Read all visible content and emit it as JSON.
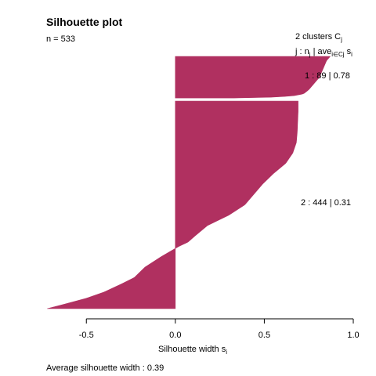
{
  "chart_data": {
    "type": "bar",
    "orientation": "horizontal",
    "title": "Silhouette plot",
    "n_label": "n = 533",
    "legend_header": {
      "line1_prefix": "2  clusters  C",
      "line1_sub": "j",
      "line2_a": "j :  n",
      "line2_a_sub": "j",
      "line2_b": " | ave",
      "line2_b_sub": "i∈Cj",
      "line2_c": "  s",
      "line2_c_sub": "i"
    },
    "clusters": [
      {
        "id": 1,
        "n": 89,
        "ave": 0.78,
        "label": "1 :   89  |  0.78",
        "profile": [
          [
            0,
            0.87
          ],
          [
            0.1,
            0.85
          ],
          [
            0.2,
            0.84
          ],
          [
            0.3,
            0.83
          ],
          [
            0.4,
            0.82
          ],
          [
            0.5,
            0.81
          ],
          [
            0.6,
            0.79
          ],
          [
            0.7,
            0.77
          ],
          [
            0.8,
            0.75
          ],
          [
            0.9,
            0.72
          ],
          [
            0.95,
            0.66
          ],
          [
            0.98,
            0.55
          ],
          [
            1.0,
            0.33
          ]
        ]
      },
      {
        "id": 2,
        "n": 444,
        "ave": 0.31,
        "label": "2 :   444  |  0.31",
        "profile": [
          [
            0,
            0.69
          ],
          [
            0.05,
            0.69
          ],
          [
            0.15,
            0.685
          ],
          [
            0.2,
            0.68
          ],
          [
            0.25,
            0.66
          ],
          [
            0.3,
            0.62
          ],
          [
            0.35,
            0.55
          ],
          [
            0.4,
            0.49
          ],
          [
            0.45,
            0.44
          ],
          [
            0.5,
            0.39
          ],
          [
            0.55,
            0.3
          ],
          [
            0.6,
            0.18
          ],
          [
            0.65,
            0.11
          ],
          [
            0.68,
            0.07
          ],
          [
            0.7,
            0.02
          ],
          [
            0.72,
            -0.02
          ],
          [
            0.75,
            -0.08
          ],
          [
            0.8,
            -0.17
          ],
          [
            0.85,
            -0.23
          ],
          [
            0.88,
            -0.3
          ],
          [
            0.92,
            -0.4
          ],
          [
            0.95,
            -0.5
          ],
          [
            0.98,
            -0.63
          ],
          [
            1.0,
            -0.72
          ]
        ]
      }
    ],
    "bar_color": "#b03060",
    "xlabel_text": "Silhouette width s",
    "xlabel_sub": "i",
    "xlim": [
      -0.73,
      1.0
    ],
    "xticks": [
      -0.5,
      0.0,
      0.5,
      1.0
    ],
    "xtick_labels": [
      "-0.5",
      "0.0",
      "0.5",
      "1.0"
    ],
    "avg_label": "Average silhouette width :  0.39"
  }
}
